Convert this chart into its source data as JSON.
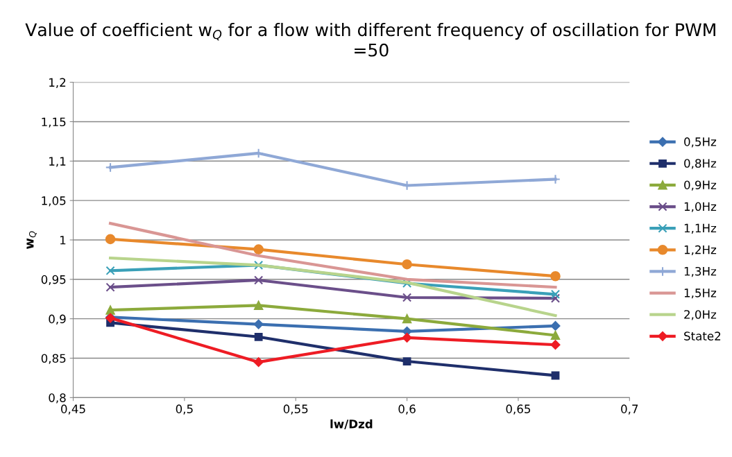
{
  "chart_data": {
    "type": "line",
    "title": "Value of coefficient w$_{Q}$ for a flow with different frequency of oscillation for PWM =50",
    "xlabel": "lw/Dzd",
    "ylabel": "w$_{Q}$",
    "x": [
      0.4667,
      0.5333,
      0.6,
      0.6667
    ],
    "xlim": [
      0.45,
      0.7
    ],
    "xticks": [
      {
        "value": 0.45,
        "label": "0,45"
      },
      {
        "value": 0.5,
        "label": "0,5"
      },
      {
        "value": 0.55,
        "label": "0,55"
      },
      {
        "value": 0.6,
        "label": "0,6"
      },
      {
        "value": 0.65,
        "label": "0,65"
      },
      {
        "value": 0.7,
        "label": "0,7"
      }
    ],
    "ylim": [
      0.8,
      1.2
    ],
    "yticks": [
      {
        "value": 0.8,
        "label": "0,8"
      },
      {
        "value": 0.85,
        "label": "0,85"
      },
      {
        "value": 0.9,
        "label": "0,9"
      },
      {
        "value": 0.95,
        "label": "0,95"
      },
      {
        "value": 1,
        "label": "1"
      },
      {
        "value": 1.05,
        "label": "1,05"
      },
      {
        "value": 1.1,
        "label": "1,1"
      },
      {
        "value": 1.15,
        "label": "1,15"
      },
      {
        "value": 1.2,
        "label": "1,2"
      }
    ],
    "grid": "y",
    "legend": "right",
    "series": [
      {
        "name": "0,5Hz",
        "color": "#3b6fb0",
        "marker": "diamond",
        "values": [
          0.902,
          0.893,
          0.884,
          0.891
        ]
      },
      {
        "name": "0,8Hz",
        "color": "#1f2f6b",
        "marker": "square",
        "values": [
          0.895,
          0.877,
          0.846,
          0.828
        ]
      },
      {
        "name": "0,9Hz",
        "color": "#8caa3c",
        "marker": "triangle",
        "values": [
          0.911,
          0.917,
          0.9,
          0.879
        ]
      },
      {
        "name": "1,0Hz",
        "color": "#6b4f8a",
        "marker": "cross",
        "values": [
          0.94,
          0.949,
          0.927,
          0.926
        ]
      },
      {
        "name": "1,1Hz",
        "color": "#3aa0b8",
        "marker": "cross",
        "values": [
          0.961,
          0.968,
          0.945,
          0.931
        ]
      },
      {
        "name": "1,2Hz",
        "color": "#e8892c",
        "marker": "circle",
        "values": [
          1.001,
          0.988,
          0.969,
          0.954
        ]
      },
      {
        "name": "1,3Hz",
        "color": "#8fa8d6",
        "marker": "plus",
        "values": [
          1.092,
          1.11,
          1.069,
          1.077
        ]
      },
      {
        "name": "1,5Hz",
        "color": "#d99694",
        "marker": "none",
        "values": [
          1.021,
          0.98,
          0.95,
          0.94
        ]
      },
      {
        "name": "2,0Hz",
        "color": "#b8d48c",
        "marker": "none",
        "values": [
          0.977,
          0.968,
          0.946,
          0.904
        ]
      },
      {
        "name": "State2",
        "color": "#ee1c24",
        "marker": "diamond",
        "values": [
          0.901,
          0.845,
          0.876,
          0.867
        ]
      }
    ]
  }
}
